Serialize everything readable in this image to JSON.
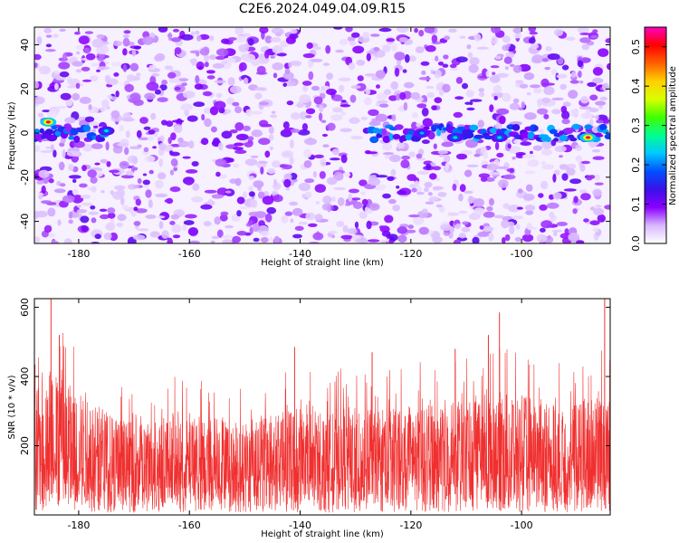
{
  "title": "C2E6.2024.049.04.09.R15",
  "chart_data": [
    {
      "type": "heatmap",
      "xlabel": "Height of straight line (km)",
      "ylabel": "Frequency (Hz)",
      "xlim": [
        -188,
        -84
      ],
      "ylim": [
        -50,
        48
      ],
      "xticks": [
        -180,
        -160,
        -140,
        -120,
        -100
      ],
      "yticks": [
        -40,
        -20,
        0,
        20,
        40
      ],
      "colorbar": {
        "label": "Normalized spectral amplitude",
        "range": [
          0,
          0.55
        ],
        "ticks": [
          0.0,
          0.1,
          0.2,
          0.3,
          0.4,
          0.5
        ],
        "colors": [
          "#ffffff",
          "#d8b8ff",
          "#8a00ff",
          "#3a10e8",
          "#0050ff",
          "#00c8ff",
          "#00ff90",
          "#40ff00",
          "#d8ff00",
          "#ffd000",
          "#ff6000",
          "#ff0000",
          "#ff00c0"
        ]
      },
      "signal_band_hz": 0,
      "signal_segments_km": [
        [
          -188,
          -175
        ],
        [
          -128,
          -84
        ]
      ],
      "hotspots": [
        {
          "x": -185.5,
          "y": 5,
          "value": 0.52
        },
        {
          "x": -88,
          "y": -2,
          "value": 0.52
        },
        {
          "x": -104,
          "y": -2,
          "value": 0.25
        },
        {
          "x": -112,
          "y": -2,
          "value": 0.25
        },
        {
          "x": -175,
          "y": 1,
          "value": 0.25
        },
        {
          "x": -118,
          "y": 0,
          "value": 0.22
        }
      ]
    },
    {
      "type": "line",
      "xlabel": "Height of straight line (km)",
      "ylabel": "SNR (10 * v/v)",
      "xlim": [
        -188,
        -84
      ],
      "ylim": [
        0,
        625
      ],
      "xticks": [
        -180,
        -160,
        -140,
        -120,
        -100
      ],
      "yticks": [
        200,
        400,
        600
      ],
      "color": "#f03030",
      "series": [
        {
          "x": [
            -188,
            -184,
            -180,
            -176,
            -172,
            -168,
            -164,
            -160,
            -156,
            -152,
            -148,
            -144,
            -140,
            -136,
            -132,
            -128,
            -124,
            -120,
            -116,
            -112,
            -108,
            -104,
            -100,
            -96,
            -92,
            -88,
            -84
          ],
          "y": [
            160,
            200,
            175,
            150,
            130,
            125,
            140,
            135,
            140,
            125,
            140,
            140,
            150,
            140,
            150,
            145,
            150,
            155,
            150,
            155,
            165,
            170,
            165,
            160,
            150,
            165,
            190
          ]
        }
      ],
      "peaks": [
        {
          "x": -185,
          "y": 625
        },
        {
          "x": -183.5,
          "y": 520
        },
        {
          "x": -141,
          "y": 485
        },
        {
          "x": -127,
          "y": 470
        },
        {
          "x": -112,
          "y": 480
        },
        {
          "x": -104,
          "y": 585
        },
        {
          "x": -106,
          "y": 520
        },
        {
          "x": -85,
          "y": 625
        }
      ]
    }
  ]
}
